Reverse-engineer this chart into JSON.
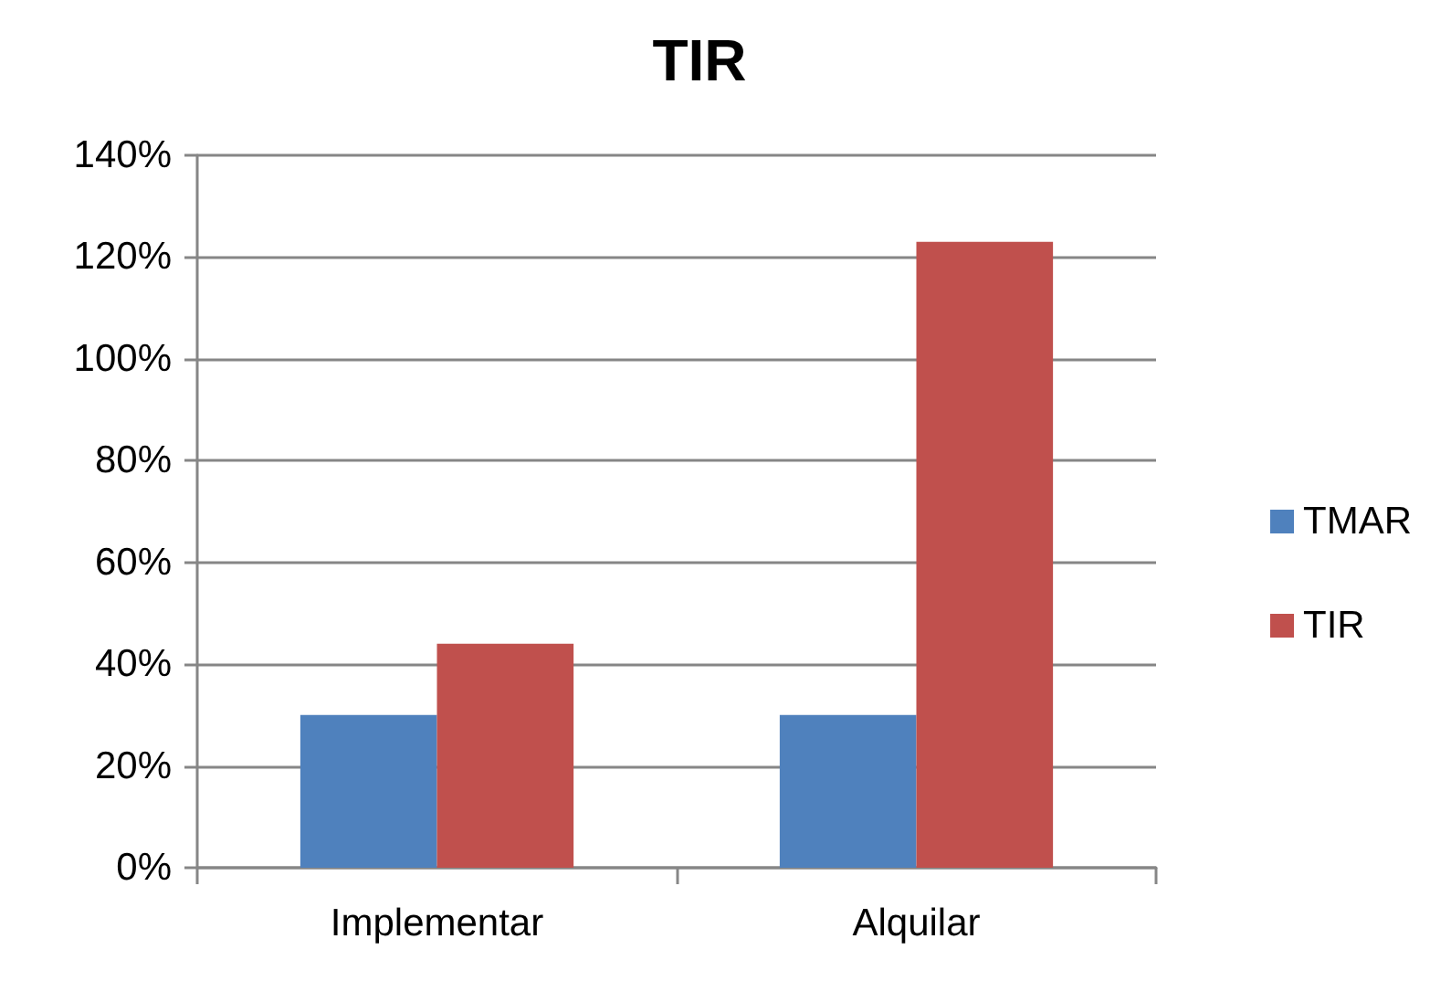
{
  "chart_data": {
    "type": "bar",
    "title": "TIR",
    "categories": [
      "Implementar",
      "Alquilar"
    ],
    "series": [
      {
        "name": "TMAR",
        "color": "#4f81bd",
        "values": [
          30,
          30
        ]
      },
      {
        "name": "TIR",
        "color": "#c0504d",
        "values": [
          44,
          123
        ]
      }
    ],
    "ylim": [
      0,
      140
    ],
    "yticks": [
      {
        "value": 0,
        "label": "0%"
      },
      {
        "value": 20,
        "label": "20%"
      },
      {
        "value": 40,
        "label": "40%"
      },
      {
        "value": 60,
        "label": "60%"
      },
      {
        "value": 80,
        "label": "80%"
      },
      {
        "value": 100,
        "label": "100%"
      },
      {
        "value": 120,
        "label": "120%"
      },
      {
        "value": 140,
        "label": "140%"
      }
    ],
    "grid": "y",
    "legend": "right"
  }
}
